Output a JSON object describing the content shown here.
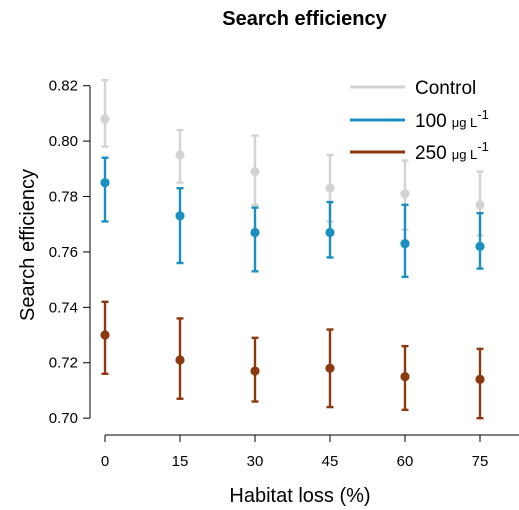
{
  "chart_data": {
    "type": "scatter",
    "title": "Search efficiency",
    "xlabel": "Habitat loss (%)",
    "ylabel": "Search efficiency",
    "x": [
      0,
      15,
      30,
      45,
      60,
      75
    ],
    "xlim": [
      0,
      75
    ],
    "ylim": [
      0.695,
      0.83
    ],
    "yticks": [
      0.7,
      0.72,
      0.74,
      0.76,
      0.78,
      0.8,
      0.82
    ],
    "grid": false,
    "legend_position": "top-right",
    "series": [
      {
        "name": "Control",
        "legend_prefix": "Control",
        "legend_unit": "",
        "legend_exp": "",
        "color": "#d3d3d3",
        "values": [
          0.808,
          0.795,
          0.789,
          0.783,
          0.781,
          0.777
        ],
        "err_low": [
          0.798,
          0.785,
          0.777,
          0.771,
          0.768,
          0.766
        ],
        "err_high": [
          0.822,
          0.804,
          0.802,
          0.795,
          0.793,
          0.789
        ]
      },
      {
        "name": "100 μg L-1",
        "legend_prefix": "100",
        "legend_unit": "μg L",
        "legend_exp": "-1",
        "color": "#1a8fc0",
        "values": [
          0.785,
          0.773,
          0.767,
          0.767,
          0.763,
          0.762
        ],
        "err_low": [
          0.771,
          0.756,
          0.753,
          0.758,
          0.751,
          0.754
        ],
        "err_high": [
          0.794,
          0.783,
          0.776,
          0.778,
          0.777,
          0.774
        ]
      },
      {
        "name": "250 μg L-1",
        "legend_prefix": "250",
        "legend_unit": "μg L",
        "legend_exp": "-1",
        "color": "#8b3a0f",
        "values": [
          0.73,
          0.721,
          0.717,
          0.718,
          0.715,
          0.714
        ],
        "err_low": [
          0.716,
          0.707,
          0.706,
          0.704,
          0.703,
          0.7
        ],
        "err_high": [
          0.742,
          0.736,
          0.729,
          0.732,
          0.726,
          0.725
        ]
      }
    ]
  }
}
